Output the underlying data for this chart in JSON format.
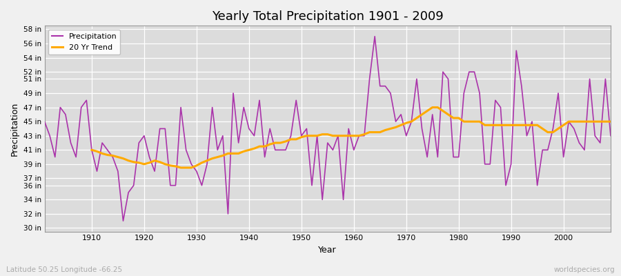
{
  "title": "Yearly Total Precipitation 1901 - 2009",
  "xlabel": "Year",
  "ylabel": "Precipitation",
  "subtitle_left": "Latitude 50.25 Longitude -66.25",
  "subtitle_right": "worldspecies.org",
  "fig_facecolor": "#f0f0f0",
  "plot_bg_color": "#dcdcdc",
  "precip_color": "#aa33aa",
  "trend_color": "#ffaa00",
  "ylim": [
    29.5,
    58.5
  ],
  "ytick_labels": [
    "30 in",
    "32 in",
    "34 in",
    "36 in",
    "37 in",
    "39 in",
    "41 in",
    "43 in",
    "45 in",
    "47 in",
    "49 in",
    "51 in",
    "52 in",
    "54 in",
    "56 in",
    "58 in"
  ],
  "ytick_values": [
    30,
    32,
    34,
    36,
    37,
    39,
    41,
    43,
    45,
    47,
    49,
    51,
    52,
    54,
    56,
    58
  ],
  "years": [
    1901,
    1902,
    1903,
    1904,
    1905,
    1906,
    1907,
    1908,
    1909,
    1910,
    1911,
    1912,
    1913,
    1914,
    1915,
    1916,
    1917,
    1918,
    1919,
    1920,
    1921,
    1922,
    1923,
    1924,
    1925,
    1926,
    1927,
    1928,
    1929,
    1930,
    1931,
    1932,
    1933,
    1934,
    1935,
    1936,
    1937,
    1938,
    1939,
    1940,
    1941,
    1942,
    1943,
    1944,
    1945,
    1946,
    1947,
    1948,
    1949,
    1950,
    1951,
    1952,
    1953,
    1954,
    1955,
    1956,
    1957,
    1958,
    1959,
    1960,
    1961,
    1962,
    1963,
    1964,
    1965,
    1966,
    1967,
    1968,
    1969,
    1970,
    1971,
    1972,
    1973,
    1974,
    1975,
    1976,
    1977,
    1978,
    1979,
    1980,
    1981,
    1982,
    1983,
    1984,
    1985,
    1986,
    1987,
    1988,
    1989,
    1990,
    1991,
    1992,
    1993,
    1994,
    1995,
    1996,
    1997,
    1998,
    1999,
    2000,
    2001,
    2002,
    2003,
    2004,
    2005,
    2006,
    2007,
    2008,
    2009
  ],
  "precip": [
    45,
    43,
    40,
    47,
    46,
    42,
    40,
    47,
    48,
    41,
    38,
    42,
    41,
    40,
    38,
    31,
    35,
    36,
    42,
    43,
    40,
    38,
    44,
    44,
    36,
    36,
    47,
    41,
    39,
    38,
    36,
    39,
    47,
    41,
    43,
    32,
    49,
    42,
    47,
    44,
    43,
    48,
    40,
    44,
    41,
    41,
    41,
    43,
    48,
    43,
    44,
    36,
    43,
    34,
    42,
    41,
    43,
    34,
    44,
    41,
    43,
    43,
    51,
    57,
    50,
    50,
    49,
    45,
    46,
    43,
    45,
    51,
    44,
    40,
    46,
    40,
    52,
    51,
    40,
    40,
    49,
    52,
    52,
    49,
    39,
    39,
    48,
    47,
    36,
    39,
    55,
    50,
    43,
    45,
    36,
    41,
    41,
    44,
    49,
    40,
    45,
    44,
    42,
    41,
    51,
    43,
    42,
    51,
    43
  ],
  "trend_years": [
    1910,
    1911,
    1912,
    1913,
    1914,
    1915,
    1916,
    1917,
    1918,
    1919,
    1920,
    1921,
    1922,
    1923,
    1924,
    1925,
    1926,
    1927,
    1928,
    1929,
    1930,
    1931,
    1932,
    1933,
    1934,
    1935,
    1936,
    1937,
    1938,
    1939,
    1940,
    1941,
    1942,
    1943,
    1944,
    1945,
    1946,
    1947,
    1948,
    1949,
    1950,
    1951,
    1952,
    1953,
    1954,
    1955,
    1956,
    1957,
    1958,
    1959,
    1960,
    1961,
    1962,
    1963,
    1964,
    1965,
    1966,
    1967,
    1968,
    1969,
    1970,
    1971,
    1972,
    1973,
    1974,
    1975,
    1976,
    1977,
    1978,
    1979,
    1980,
    1981,
    1982,
    1983,
    1984,
    1985,
    1986,
    1987,
    1988,
    1989,
    1990,
    1991,
    1992,
    1993,
    1994,
    1995,
    1996,
    1997,
    1998,
    1999,
    2000,
    2001,
    2002,
    2003,
    2004,
    2005,
    2006,
    2007,
    2008,
    2009
  ],
  "trend": [
    41.0,
    40.8,
    40.5,
    40.3,
    40.2,
    40.0,
    39.8,
    39.5,
    39.3,
    39.2,
    39.0,
    39.2,
    39.5,
    39.3,
    39.0,
    38.8,
    38.7,
    38.5,
    38.5,
    38.5,
    38.8,
    39.2,
    39.5,
    39.8,
    40.0,
    40.2,
    40.5,
    40.5,
    40.5,
    40.8,
    41.0,
    41.2,
    41.5,
    41.5,
    41.8,
    42.0,
    42.0,
    42.2,
    42.5,
    42.5,
    42.8,
    43.0,
    43.0,
    43.0,
    43.2,
    43.2,
    43.0,
    43.0,
    43.0,
    43.0,
    43.0,
    43.0,
    43.2,
    43.5,
    43.5,
    43.5,
    43.8,
    44.0,
    44.2,
    44.5,
    44.8,
    45.0,
    45.5,
    46.0,
    46.5,
    47.0,
    47.0,
    46.5,
    46.0,
    45.5,
    45.5,
    45.0,
    45.0,
    45.0,
    45.0,
    44.5,
    44.5,
    44.5,
    44.5,
    44.5,
    44.5,
    44.5,
    44.5,
    44.5,
    44.5,
    44.5,
    44.0,
    43.5,
    43.5,
    44.0,
    44.5,
    45.0,
    45.0,
    45.0,
    45.0,
    45.0,
    45.0,
    45.0,
    45.0,
    45.0
  ],
  "xlim": [
    1901,
    2009
  ],
  "xticks": [
    1910,
    1920,
    1930,
    1940,
    1950,
    1960,
    1970,
    1980,
    1990,
    2000
  ]
}
